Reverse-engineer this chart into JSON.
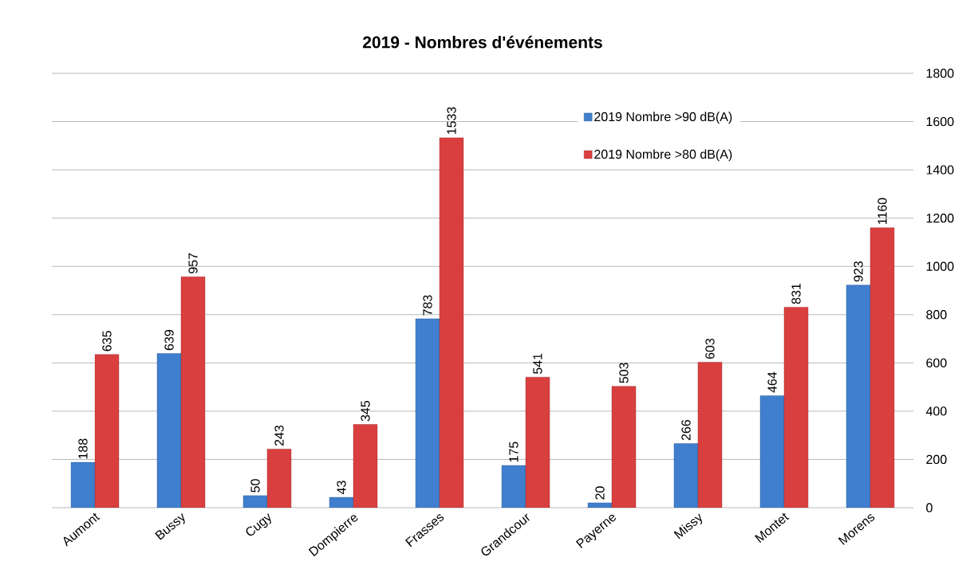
{
  "chart_data": {
    "type": "bar",
    "title": "2019 - Nombres d'événements",
    "categories": [
      "Aumont",
      "Bussy",
      "Cugy",
      "Dompierre",
      "Frasses",
      "Grandcour",
      "Payerne",
      "Missy",
      "Montet",
      "Morens"
    ],
    "series": [
      {
        "name": "2019 Nombre >90 dB(A)",
        "color": "#3f7fce",
        "values": [
          188,
          639,
          50,
          43,
          783,
          175,
          20,
          266,
          464,
          923
        ]
      },
      {
        "name": "2019 Nombre >80 dB(A)",
        "color": "#d93f3f",
        "values": [
          635,
          957,
          243,
          345,
          1533,
          541,
          503,
          603,
          831,
          1160
        ]
      }
    ],
    "ylim": [
      0,
      1800
    ],
    "yticks": [
      0,
      200,
      400,
      600,
      800,
      1000,
      1200,
      1400,
      1600,
      1800
    ],
    "grid": "y",
    "legend": "top right",
    "data_labels": true
  }
}
